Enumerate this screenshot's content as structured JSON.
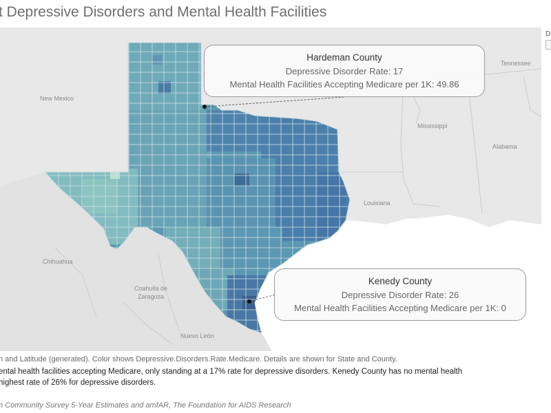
{
  "title": "t Depressive Disorders and Mental Health Facilities",
  "legend": {
    "label": "D"
  },
  "map": {
    "place_labels": {
      "new_mexico": "New Mexico",
      "tennessee": "Tennessee",
      "mississippi": "Mississippi",
      "alabama": "Alabama",
      "louisiana": "Louisiana",
      "chihuahua": "Chihuahua",
      "coahuila_1": "Coahuila de",
      "coahuila_2": "Zaragoza",
      "nuevo_leon": "Nuevo León"
    },
    "colors": {
      "background": "#e8e8e8",
      "land_mexico": "#e3e3e3",
      "ocean": "#ffffff",
      "county_light": "#9fcfcf",
      "county_mid": "#5d9db4",
      "county_dark": "#41709d",
      "county_border": "#cfe0e4"
    }
  },
  "callouts": {
    "hardeman": {
      "name": "Hardeman County",
      "rate": "Depressive Disorder Rate: 17",
      "facilities": "Mental Health Facilities Accepting Medicare per 1K: 49.86"
    },
    "kenedy": {
      "name": "Kenedy County",
      "rate": "Depressive Disorder Rate: 26",
      "facilities": "Mental Health Facilities Accepting Medicare per 1K: 0"
    }
  },
  "captions": {
    "line1": "n and Latitude (generated).  Color shows Depressive.Disorders.Rate.Medicare.  Details are shown for State and County.",
    "line2": "ental health facilities accepting Medicare, only standing at a 17% rate for depressive disorders. Kenedy County has no mental health",
    "line3": "highest rate of 26% for depressive disorders.",
    "source": "n Community Survey 5-Year Estimates and  amfAR, The Foundation for AIDS Research"
  }
}
